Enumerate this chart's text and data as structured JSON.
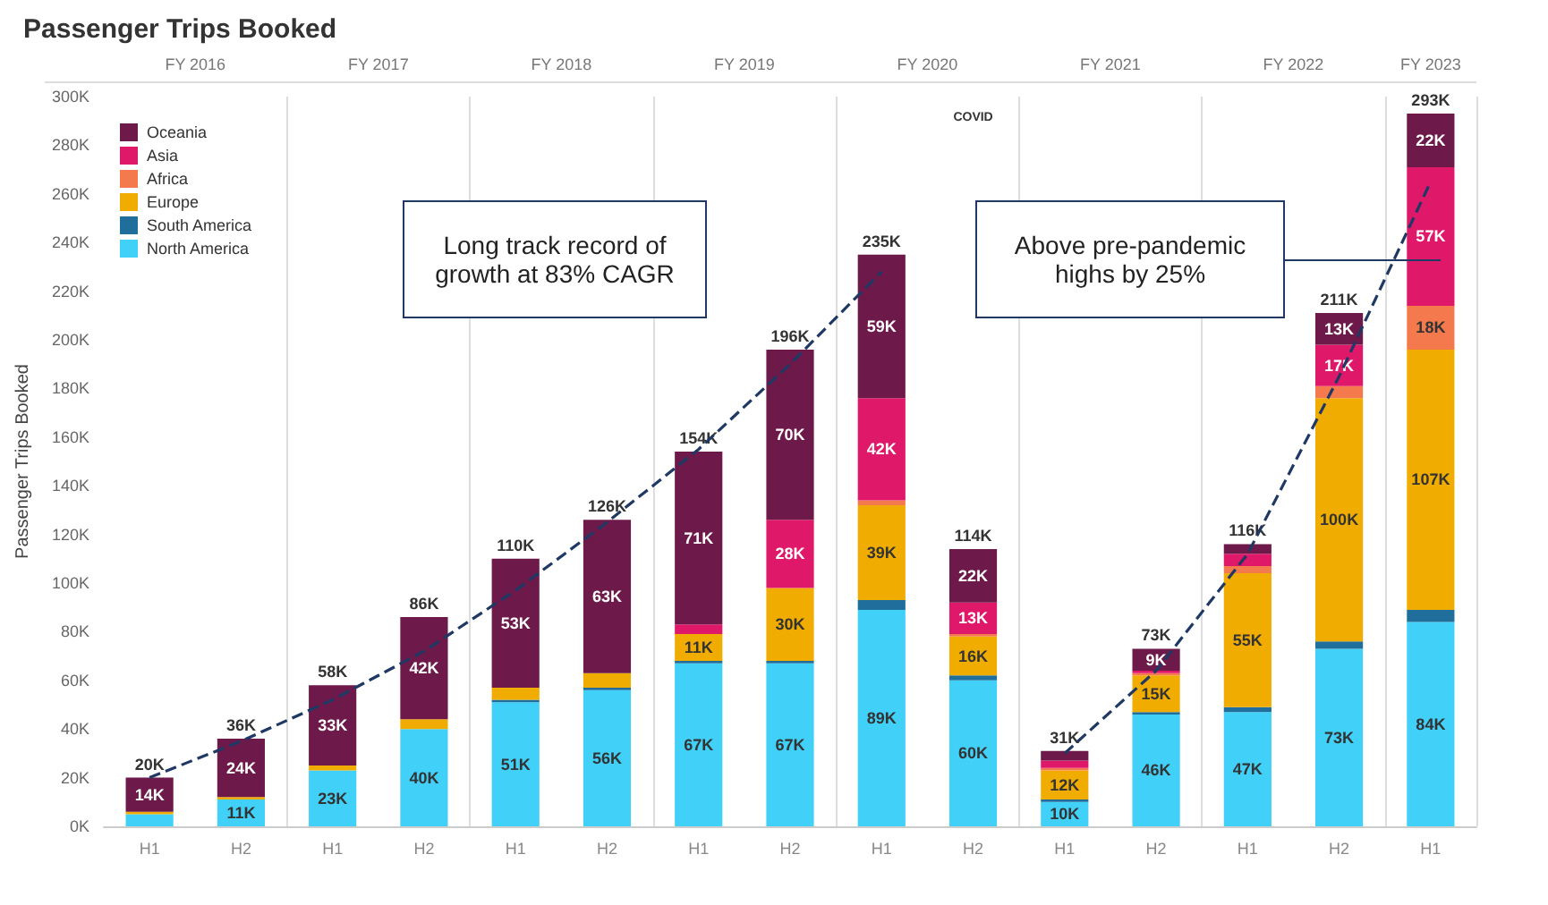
{
  "chart_data": {
    "type": "bar",
    "title": "Passenger Trips Booked",
    "ylabel": "Passenger Trips Booked",
    "stacked": true,
    "legend": "top left",
    "grid": false,
    "categories": [
      "H1",
      "H2",
      "H1",
      "H2",
      "H1",
      "H2",
      "H1",
      "H2",
      "H1",
      "H2",
      "H1",
      "H2",
      "H1",
      "H2",
      "H1"
    ],
    "ylim": [
      0,
      300
    ],
    "yticks": [
      {
        "value": 0,
        "label": "0K"
      },
      {
        "value": 20,
        "label": "20K"
      },
      {
        "value": 40,
        "label": "40K"
      },
      {
        "value": 60,
        "label": "60K"
      },
      {
        "value": 80,
        "label": "80K"
      },
      {
        "value": 100,
        "label": "100K"
      },
      {
        "value": 120,
        "label": "120K"
      },
      {
        "value": 140,
        "label": "140K"
      },
      {
        "value": 160,
        "label": "160K"
      },
      {
        "value": 180,
        "label": "180K"
      },
      {
        "value": 200,
        "label": "200K"
      },
      {
        "value": 220,
        "label": "220K"
      },
      {
        "value": 240,
        "label": "240K"
      },
      {
        "value": 260,
        "label": "260K"
      },
      {
        "value": 280,
        "label": "280K"
      },
      {
        "value": 300,
        "label": "300K"
      }
    ],
    "series": [
      {
        "name": "North America",
        "color": "#40d0f8",
        "values": [
          5,
          11,
          23,
          40,
          51,
          56,
          67,
          67,
          89,
          60,
          10,
          46,
          47,
          73,
          84
        ],
        "value_labels": [
          null,
          "11K",
          "23K",
          "40K",
          "51K",
          "56K",
          "67K",
          "67K",
          "89K",
          "60K",
          "10K",
          "46K",
          "47K",
          "73K",
          "84K"
        ]
      },
      {
        "name": "South America",
        "color": "#1f6e9c",
        "values": [
          0,
          0,
          0,
          0,
          1,
          1,
          1,
          1,
          4,
          2,
          1,
          1,
          2,
          3,
          5
        ]
      },
      {
        "name": "Europe",
        "color": "#f0ad00",
        "values": [
          1,
          1,
          2,
          4,
          5,
          6,
          11,
          30,
          39,
          16,
          12,
          15,
          55,
          100,
          107
        ],
        "value_labels": [
          null,
          null,
          null,
          null,
          null,
          null,
          "11K",
          "30K",
          "39K",
          "16K",
          "12K",
          "15K",
          "55K",
          "100K",
          "107K"
        ]
      },
      {
        "name": "Africa",
        "color": "#f47a4e",
        "values": [
          0,
          0,
          0,
          0,
          0,
          0,
          0,
          0,
          2,
          1,
          1,
          1,
          3,
          5,
          18
        ],
        "value_labels": [
          null,
          null,
          null,
          null,
          null,
          null,
          null,
          null,
          null,
          null,
          null,
          null,
          null,
          null,
          "18K"
        ]
      },
      {
        "name": "Asia",
        "color": "#e0186a",
        "values": [
          0,
          0,
          0,
          0,
          0,
          0,
          4,
          28,
          42,
          13,
          3,
          1,
          5,
          17,
          57
        ],
        "value_labels": [
          null,
          null,
          null,
          null,
          null,
          null,
          null,
          "28K",
          "42K",
          "13K",
          null,
          null,
          null,
          "17K",
          "57K"
        ]
      },
      {
        "name": "Oceania",
        "color": "#6d1a4a",
        "values": [
          14,
          24,
          33,
          42,
          53,
          63,
          71,
          70,
          59,
          22,
          4,
          9,
          4,
          13,
          22
        ],
        "value_labels": [
          "14K",
          "24K",
          "33K",
          "42K",
          "53K",
          "63K",
          "71K",
          "70K",
          "59K",
          "22K",
          null,
          "9K",
          null,
          "13K",
          "22K"
        ]
      },
      {
        "type": "line",
        "color": "#1f3864",
        "line_style": "dashed",
        "marker": "none",
        "values": [
          20,
          35,
          52,
          72,
          97,
          125,
          155,
          190,
          228,
          null,
          null,
          null,
          null,
          null,
          null
        ]
      },
      {
        "type": "line",
        "color": "#1f3864",
        "line_style": "dashed",
        "marker": "none",
        "values": [
          null,
          null,
          null,
          null,
          null,
          null,
          null,
          null,
          null,
          null,
          30,
          64,
          112,
          185,
          265
        ]
      }
    ],
    "totals": [
      "20K",
      "36K",
      "58K",
      "86K",
      "110K",
      "126K",
      "154K",
      "196K",
      "235K",
      "114K",
      "31K",
      "73K",
      "116K",
      "211K",
      "293K"
    ],
    "annotations": [
      "FY 2016",
      "FY 2017",
      "FY 2018",
      "FY 2019",
      "FY 2020",
      "FY 2021",
      "FY 2022",
      "FY 2023",
      "COVID",
      "Long track record of growth at 83% CAGR",
      "Above pre-pandemic highs by 25%"
    ]
  }
}
